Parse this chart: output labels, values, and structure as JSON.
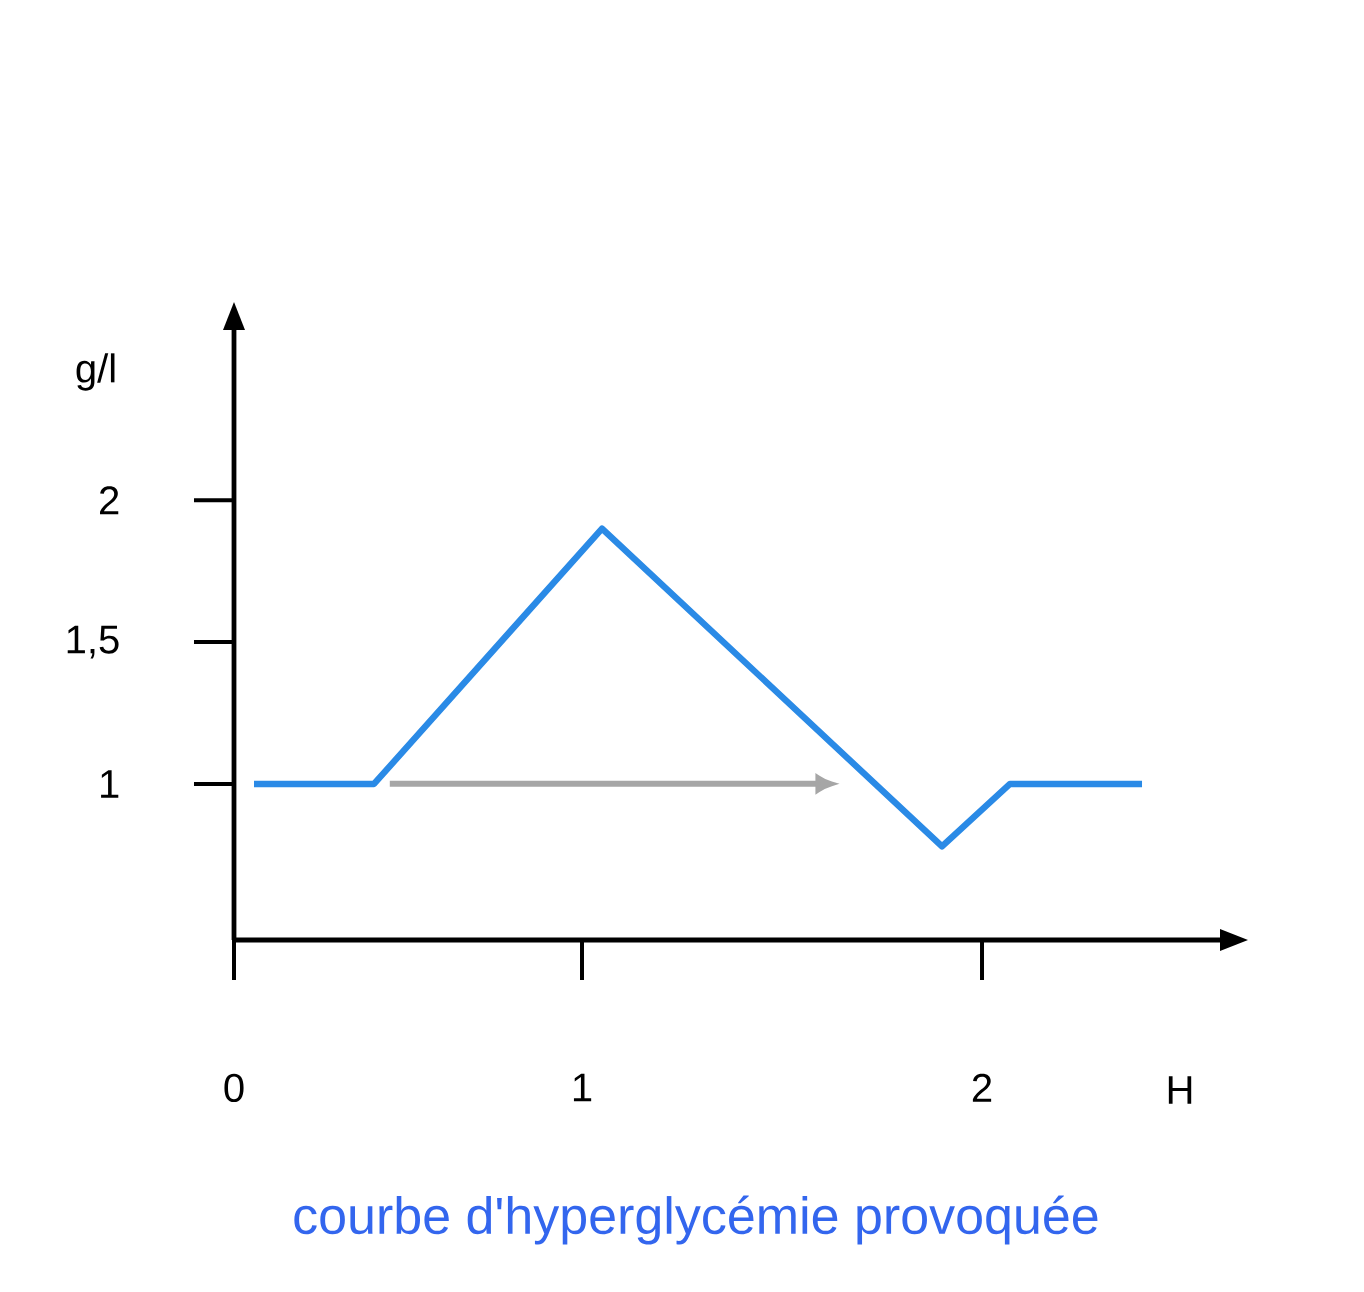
{
  "chart_data": {
    "type": "line",
    "title": "courbe d'hyperglycémie provoquée",
    "xlabel": "H",
    "ylabel": "g/l",
    "series": [
      {
        "color": "#2a8ae6",
        "x": [
          0.18,
          0.48,
          1.05,
          1.9,
          2.07,
          2.4
        ],
        "values": [
          1,
          1,
          1.9,
          0.78,
          1,
          1
        ]
      }
    ],
    "xlim": [
      0.13,
      2.595
    ],
    "ylim": [
      0.45,
      2.6
    ],
    "xticks": [
      {
        "value": 0.13,
        "label": "0"
      },
      1,
      2
    ],
    "yticks": [
      1,
      {
        "value": 1.5,
        "label": "1,5"
      },
      2
    ]
  }
}
